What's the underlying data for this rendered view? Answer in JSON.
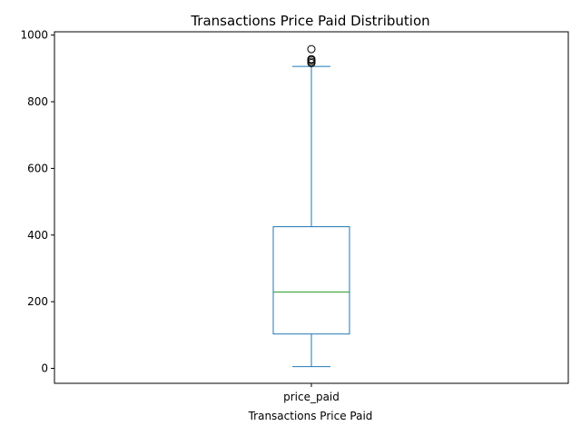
{
  "chart_data": {
    "type": "box",
    "title": "Transactions Price Paid Distribution",
    "xlabel": "Transactions Price Paid",
    "ylabel": "",
    "categories": [
      "price_paid"
    ],
    "ylim": [
      -45,
      1010
    ],
    "yticks": [
      0,
      200,
      400,
      600,
      800,
      1000
    ],
    "grid": false,
    "boxes": [
      {
        "name": "price_paid",
        "whisker_low": 5,
        "q1": 103,
        "median": 229,
        "q3": 425,
        "whisker_high": 906,
        "outliers": [
          916,
          920,
          925,
          928,
          958
        ]
      }
    ],
    "colors": {
      "box": "#1f77b4",
      "median": "#2ca02c",
      "outlier": "#000000"
    }
  }
}
